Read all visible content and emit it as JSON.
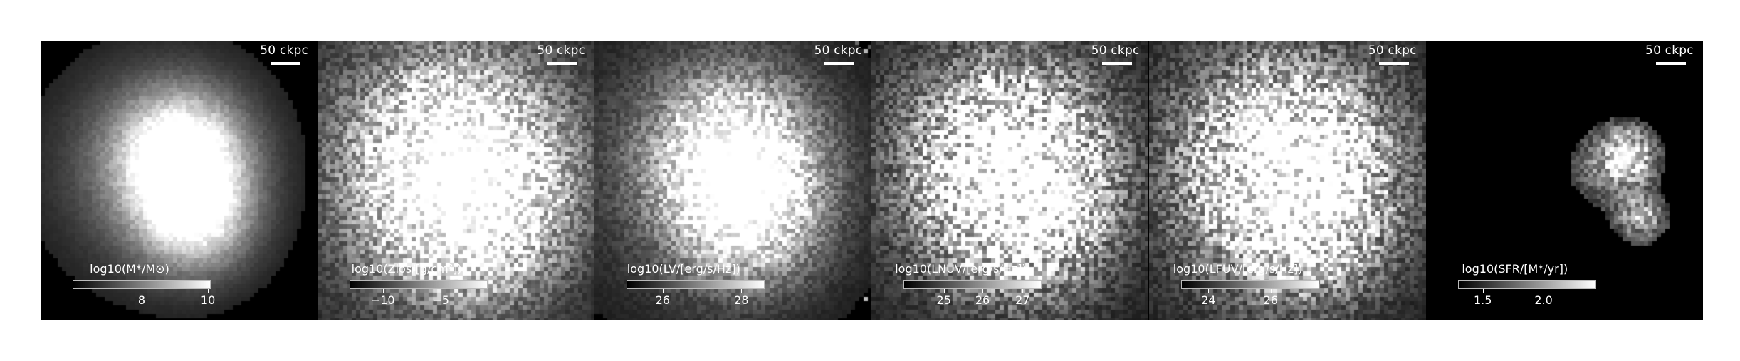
{
  "scale_bar_label": "50 ckpc",
  "panels": [
    {
      "colorbar_label": "log10(M*/M⊙)",
      "ticks": [
        "8",
        "10"
      ],
      "tick_pos": [
        0.5,
        0.98
      ],
      "map": "mass"
    },
    {
      "colorbar_label": "log10(Zlos/[g/cm²])",
      "ticks": [
        "−10",
        "−5"
      ],
      "tick_pos": [
        0.24,
        0.66
      ],
      "map": "metal"
    },
    {
      "colorbar_label": "log10(LV/[erg/s/Hz])",
      "ticks": [
        "26",
        "28"
      ],
      "tick_pos": [
        0.26,
        0.83
      ],
      "map": "lv"
    },
    {
      "colorbar_label": "log10(LNUV/[erg/s/Hz])",
      "ticks": [
        "25",
        "26",
        "27"
      ],
      "tick_pos": [
        0.29,
        0.57,
        0.86
      ],
      "map": "nuv"
    },
    {
      "colorbar_label": "log10(LFUV/[erg/s/Hz])",
      "ticks": [
        "24",
        "26"
      ],
      "tick_pos": [
        0.2,
        0.65
      ],
      "map": "fuv"
    },
    {
      "colorbar_label": "log10(SFR/[M*/yr])",
      "ticks": [
        "1.5",
        "2.0"
      ],
      "tick_pos": [
        0.18,
        0.62
      ],
      "map": "sfr"
    }
  ]
}
